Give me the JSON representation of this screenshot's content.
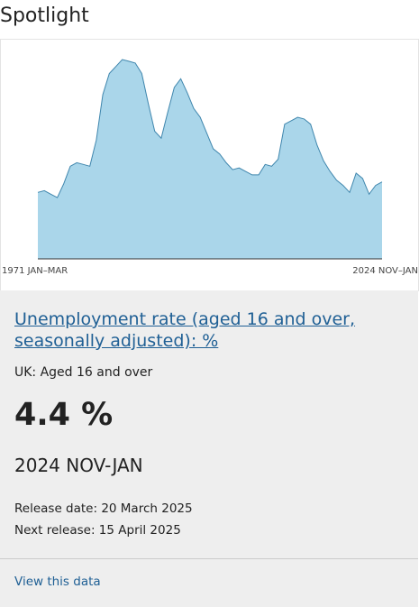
{
  "section": {
    "heading": "Spotlight"
  },
  "chart_data": {
    "type": "area",
    "x_start_label": "1971 JAN–MAR",
    "x_end_label": "2024 NOV–JAN",
    "fill_color": "#aad6ea",
    "line_color": "#3f86ad",
    "x": [
      "1971",
      "1972",
      "1973",
      "1974",
      "1975",
      "1976",
      "1977",
      "1978",
      "1979",
      "1980",
      "1981",
      "1982",
      "1983",
      "1984",
      "1985",
      "1986",
      "1987",
      "1988",
      "1989",
      "1990",
      "1991",
      "1992",
      "1993",
      "1994",
      "1995",
      "1996",
      "1997",
      "1998",
      "1999",
      "2000",
      "2001",
      "2002",
      "2003",
      "2004",
      "2005",
      "2006",
      "2007",
      "2008",
      "2009",
      "2010",
      "2011",
      "2012",
      "2013",
      "2014",
      "2015",
      "2016",
      "2017",
      "2018",
      "2019",
      "2020",
      "2021",
      "2022",
      "2023",
      "2024"
    ],
    "values": [
      3.8,
      3.9,
      3.7,
      3.5,
      4.3,
      5.3,
      5.5,
      5.4,
      5.3,
      6.8,
      9.4,
      10.6,
      11.0,
      11.4,
      11.3,
      11.2,
      10.6,
      8.9,
      7.3,
      6.9,
      8.4,
      9.8,
      10.3,
      9.5,
      8.6,
      8.1,
      7.2,
      6.3,
      6.0,
      5.5,
      5.1,
      5.2,
      5.0,
      4.8,
      4.8,
      5.4,
      5.3,
      5.7,
      7.7,
      7.9,
      8.1,
      8.0,
      7.7,
      6.5,
      5.6,
      5.0,
      4.5,
      4.2,
      3.8,
      4.9,
      4.6,
      3.7,
      4.2,
      4.4
    ]
  },
  "card": {
    "title": "Unemployment rate (aged 16 and over, seasonally adjusted): %",
    "subtitle": "UK: Aged 16 and over",
    "value": "4.4 %",
    "period": "2024 NOV-JAN",
    "release_date": "Release date: 20 March 2025",
    "next_release": "Next release: 15 April 2025",
    "link_text": "View this data"
  },
  "colors": {
    "link": "#206095",
    "card_background": "#eeeeee"
  }
}
